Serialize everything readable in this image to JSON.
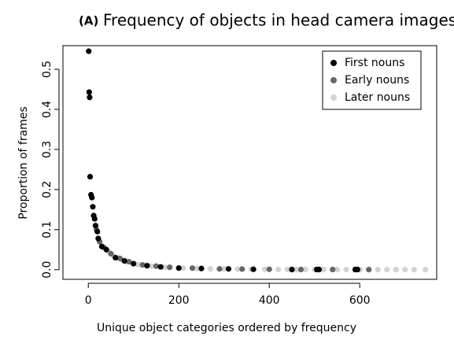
{
  "chart_data": {
    "type": "scatter",
    "panel": "(A)",
    "title": "Frequency of objects in head camera images",
    "x_label": "Unique object categories ordered by frequency",
    "y_label": "Proportion of frames",
    "xlim": [
      -56,
      770
    ],
    "ylim": [
      -0.024,
      0.559
    ],
    "xticks": [
      0,
      200,
      400,
      600
    ],
    "yticks": [
      {
        "value": 0,
        "label": "0.0"
      },
      0.1,
      0.2,
      0.3,
      0.4,
      0.5
    ],
    "legend": "top-right",
    "series": [
      {
        "name": "First nouns",
        "color": "#000000",
        "x": [
          1,
          2,
          3,
          4,
          6,
          8,
          10,
          12,
          14,
          16,
          20,
          22,
          30,
          40,
          60,
          80,
          100,
          130,
          160,
          200,
          250,
          310,
          365,
          450,
          505,
          510,
          590,
          595
        ],
        "y": [
          0.545,
          0.443,
          0.43,
          0.232,
          0.187,
          0.18,
          0.157,
          0.135,
          0.127,
          0.11,
          0.095,
          0.078,
          0.058,
          0.05,
          0.03,
          0.022,
          0.015,
          0.01,
          0.007,
          0.004,
          0.003,
          0.002,
          0.001,
          0.0005,
          0.0005,
          0.0005,
          0.0005,
          0.0005
        ]
      },
      {
        "name": "Early nouns",
        "color": "#666666",
        "x": [
          18,
          25,
          35,
          50,
          70,
          90,
          120,
          150,
          180,
          230,
          290,
          340,
          400,
          470,
          540,
          620
        ],
        "y": [
          0.1,
          0.07,
          0.055,
          0.04,
          0.028,
          0.02,
          0.012,
          0.009,
          0.006,
          0.004,
          0.002,
          0.0015,
          0.001,
          0.0005,
          0.0005,
          0.0003
        ]
      },
      {
        "name": "Later nouns",
        "color": "#d3d3d3",
        "x": [
          45,
          55,
          65,
          75,
          85,
          110,
          140,
          170,
          210,
          240,
          270,
          300,
          330,
          360,
          390,
          420,
          440,
          460,
          480,
          500,
          520,
          550,
          570,
          600,
          620,
          640,
          660,
          680,
          700,
          720,
          745
        ],
        "y": [
          0.045,
          0.035,
          0.03,
          0.025,
          0.02,
          0.013,
          0.009,
          0.006,
          0.004,
          0.003,
          0.002,
          0.002,
          0.0015,
          0.001,
          0.001,
          0.0008,
          0.0006,
          0.0005,
          0.0005,
          0.0004,
          0.0004,
          0.0003,
          0.0003,
          0.0002,
          0.0002,
          0.0002,
          0.0001,
          0.0001,
          0.0001,
          0.0001,
          0.0001
        ]
      }
    ]
  }
}
